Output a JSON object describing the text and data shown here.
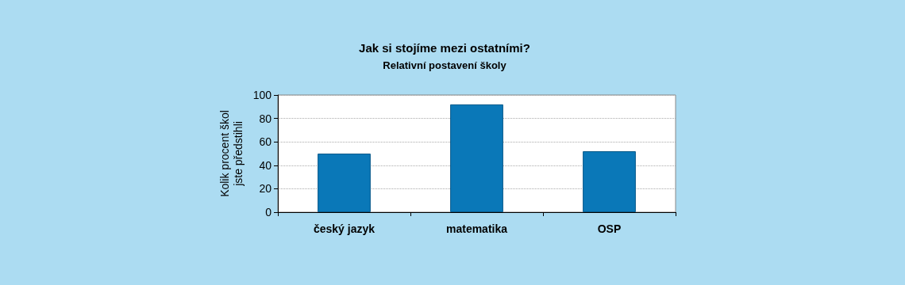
{
  "chart_data": {
    "type": "bar",
    "title": "Jak si stojíme mezi ostatními?",
    "subtitle": "Relativní postavení školy",
    "ylabel": "Kolik procent škol\njste předstihli",
    "categories": [
      "český jazyk",
      "matematika",
      "OSP"
    ],
    "values": [
      50,
      92,
      52
    ],
    "color": "#0a78b8",
    "ylim": [
      0,
      100
    ],
    "yticks": [
      0,
      20,
      40,
      60,
      80,
      100
    ],
    "grid": "y"
  }
}
